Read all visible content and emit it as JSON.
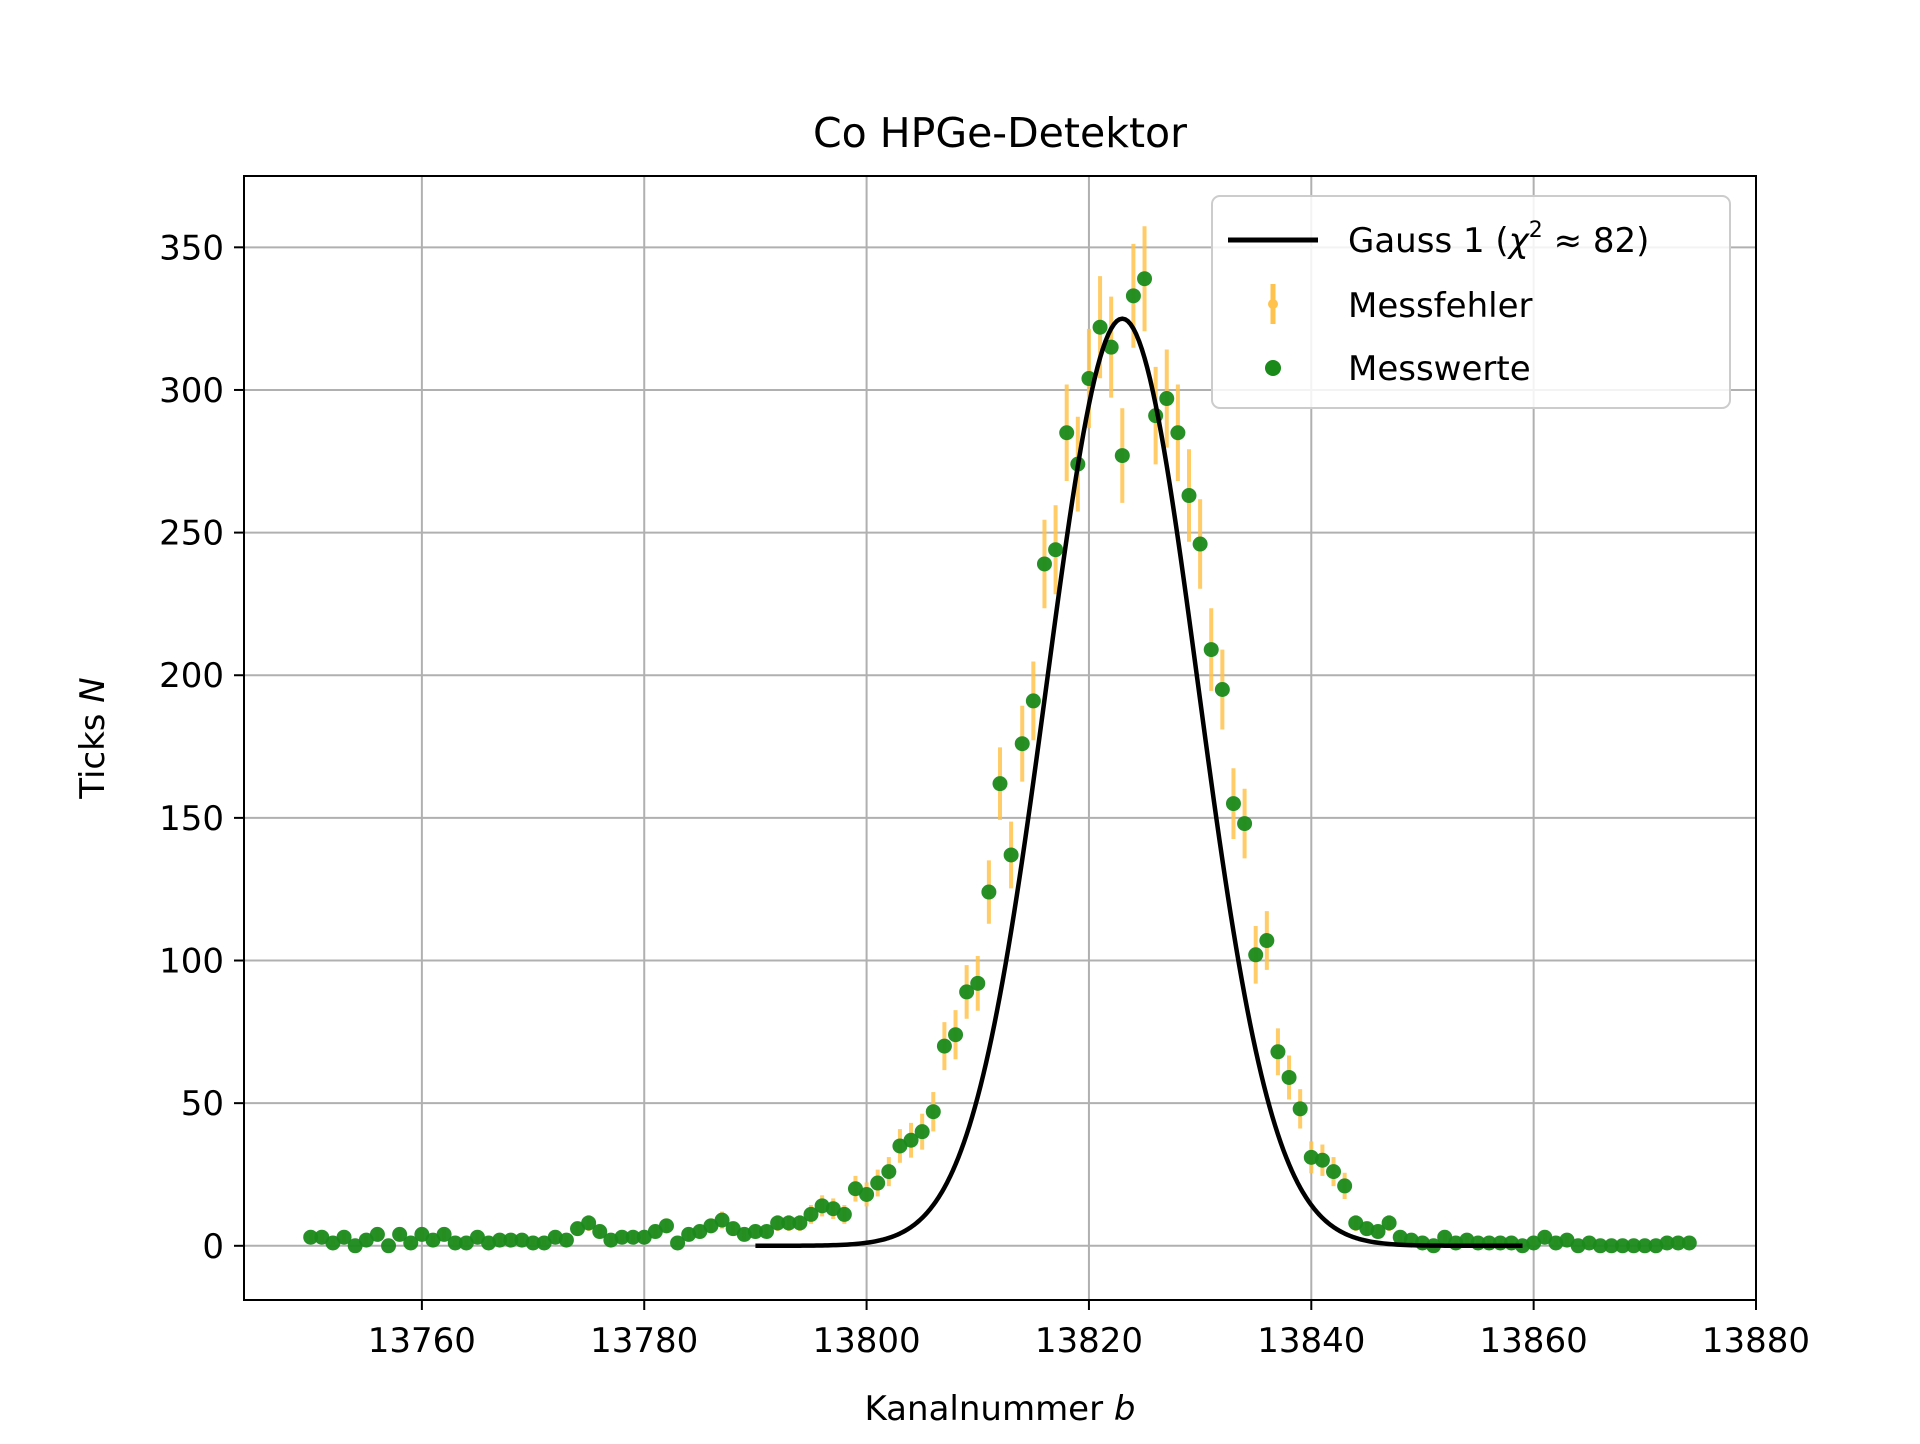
{
  "chart_data": {
    "type": "scatter",
    "title": "Co HPGe-Detektor",
    "xlabel": "Kanalnummer",
    "xlabel_var": "b",
    "ylabel": "Ticks",
    "ylabel_var": "N",
    "xlim": [
      13744,
      13880
    ],
    "ylim": [
      -19,
      375
    ],
    "xticks": [
      13760,
      13780,
      13800,
      13820,
      13840,
      13860,
      13880
    ],
    "yticks": [
      0,
      50,
      100,
      150,
      200,
      250,
      300,
      350
    ],
    "grid": true,
    "legend_position": "top-right",
    "legend": {
      "fit_prefix": "Gauss 1 (",
      "fit_chi": "χ",
      "fit_exp": "2",
      "fit_suffix": " ≈ 82)",
      "errors_label": "Messfehler",
      "points_label": "Messwerte"
    },
    "colors": {
      "points": "#1a8a1a",
      "errors": "#ffc34d",
      "fit": "#000000"
    },
    "measurements": {
      "x": [
        13750,
        13751,
        13752,
        13753,
        13754,
        13755,
        13756,
        13757,
        13758,
        13759,
        13760,
        13761,
        13762,
        13763,
        13764,
        13765,
        13766,
        13767,
        13768,
        13769,
        13770,
        13771,
        13772,
        13773,
        13774,
        13775,
        13776,
        13777,
        13778,
        13779,
        13780,
        13781,
        13782,
        13783,
        13784,
        13785,
        13786,
        13787,
        13788,
        13789,
        13790,
        13791,
        13792,
        13793,
        13794,
        13795,
        13796,
        13797,
        13798,
        13799,
        13800,
        13801,
        13802,
        13803,
        13804,
        13805,
        13806,
        13807,
        13808,
        13809,
        13810,
        13811,
        13812,
        13813,
        13814,
        13815,
        13816,
        13817,
        13818,
        13819,
        13820,
        13821,
        13822,
        13823,
        13824,
        13825,
        13826,
        13827,
        13828,
        13829,
        13830,
        13831,
        13832,
        13833,
        13834,
        13835,
        13836,
        13837,
        13838,
        13839,
        13840,
        13841,
        13842,
        13843,
        13844,
        13845,
        13846,
        13847,
        13848,
        13849,
        13850,
        13851,
        13852,
        13853,
        13854,
        13855,
        13856,
        13857,
        13858,
        13859,
        13860,
        13861,
        13862,
        13863,
        13864,
        13865,
        13866,
        13867,
        13868,
        13869,
        13870,
        13871,
        13872,
        13873,
        13874
      ],
      "y": [
        3,
        3,
        1,
        3,
        0,
        2,
        4,
        0,
        4,
        1,
        4,
        2,
        4,
        1,
        1,
        3,
        1,
        2,
        2,
        2,
        1,
        1,
        3,
        2,
        6,
        8,
        5,
        2,
        3,
        3,
        3,
        5,
        7,
        1,
        4,
        5,
        7,
        9,
        6,
        4,
        5,
        5,
        8,
        8,
        8,
        11,
        14,
        13,
        11,
        20,
        18,
        22,
        26,
        35,
        37,
        40,
        47,
        70,
        74,
        89,
        92,
        124,
        162,
        137,
        176,
        191,
        239,
        244,
        285,
        274,
        304,
        322,
        315,
        277,
        333,
        339,
        291,
        297,
        285,
        263,
        246,
        209,
        195,
        155,
        148,
        102,
        107,
        68,
        59,
        48,
        31,
        30,
        26,
        21,
        8,
        6,
        5,
        8,
        3,
        2,
        1,
        0,
        3,
        1,
        2,
        1,
        1,
        1,
        1,
        0,
        1,
        3,
        1,
        2,
        0,
        1,
        0,
        0,
        0,
        0,
        0,
        0,
        1,
        1,
        1
      ],
      "err": [
        1.7,
        1.7,
        1.0,
        1.7,
        0,
        1.4,
        2.0,
        0,
        2.0,
        1.0,
        2.0,
        1.4,
        2.0,
        1.0,
        1.0,
        1.7,
        1.0,
        1.4,
        1.4,
        1.4,
        1.0,
        1.0,
        1.7,
        1.4,
        2.4,
        2.8,
        2.2,
        1.4,
        1.7,
        1.7,
        1.7,
        2.2,
        2.6,
        1.0,
        2.0,
        2.2,
        2.6,
        3.0,
        2.4,
        2.0,
        2.2,
        2.2,
        2.8,
        2.8,
        2.8,
        3.3,
        3.7,
        3.6,
        3.3,
        4.5,
        4.2,
        4.7,
        5.1,
        5.9,
        6.1,
        6.3,
        6.9,
        8.4,
        8.6,
        9.4,
        9.6,
        11.1,
        12.7,
        11.7,
        13.3,
        13.8,
        15.5,
        15.6,
        16.9,
        16.6,
        17.4,
        17.9,
        17.7,
        16.6,
        18.2,
        18.4,
        17.1,
        17.2,
        16.9,
        16.2,
        15.7,
        14.5,
        14.0,
        12.4,
        12.2,
        10.1,
        10.3,
        8.2,
        7.7,
        6.9,
        5.6,
        5.5,
        5.1,
        4.6,
        2.8,
        2.4,
        2.2,
        2.8,
        1.7,
        1.4,
        1.0,
        0,
        1.7,
        1.0,
        1.4,
        1.0,
        1.0,
        1.0,
        1.0,
        0,
        1.0,
        1.7,
        1.0,
        1.4,
        0,
        1.0,
        0,
        0,
        0,
        0,
        0,
        0,
        1.0,
        1.0,
        1.0
      ]
    },
    "fit": {
      "amplitude": 325,
      "mu": 13823,
      "sigma": 6.8,
      "offset": 0,
      "x_range": [
        13790,
        13859
      ]
    }
  }
}
